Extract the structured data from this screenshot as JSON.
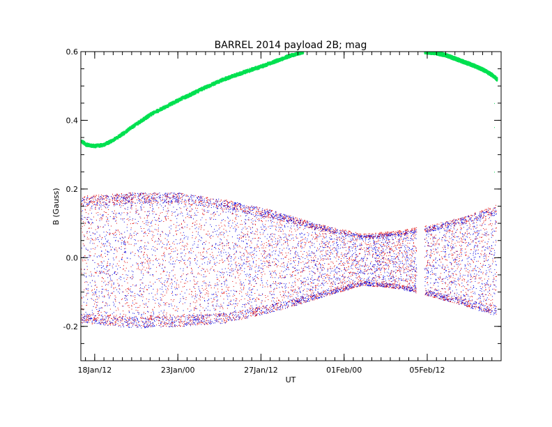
{
  "chart_data": {
    "type": "scatter",
    "title": "BARREL 2014 payload 2B; mag",
    "xlabel": "UT",
    "ylabel": "B (Gauss)",
    "xlim": [
      "2014-01-17T18:00",
      "2014-02-09T12:00"
    ],
    "ylim": [
      -0.3,
      0.6
    ],
    "x_ticks": [
      {
        "label": "18Jan/12",
        "value": "2014-01-18T12:00"
      },
      {
        "label": "23Jan/00",
        "value": "2014-01-23T00:00"
      },
      {
        "label": "27Jan/12",
        "value": "2014-01-27T12:00"
      },
      {
        "label": "01Feb/00",
        "value": "2014-02-01T00:00"
      },
      {
        "label": "05Feb/12",
        "value": "2014-02-05T12:00"
      }
    ],
    "y_ticks": [
      {
        "label": "0.6",
        "value": 0.6
      },
      {
        "label": "0.4",
        "value": 0.4
      },
      {
        "label": "0.2",
        "value": 0.2
      },
      {
        "label": "0.0",
        "value": 0.0
      },
      {
        "label": "-0.2",
        "value": -0.2
      }
    ],
    "grid": false,
    "legend": "none",
    "series": [
      {
        "color": "#00e050",
        "x": [
          "2014-01-17T18:00",
          "2014-01-18T00:00",
          "2014-01-18T12:00",
          "2014-01-19T00:00",
          "2014-01-19T12:00",
          "2014-01-20T00:00",
          "2014-01-20T12:00",
          "2014-01-21T00:00",
          "2014-01-21T12:00",
          "2014-01-22T00:00",
          "2014-01-22T12:00",
          "2014-01-23T00:00",
          "2014-01-23T12:00",
          "2014-01-24T00:00",
          "2014-01-24T12:00",
          "2014-01-25T00:00",
          "2014-01-25T12:00",
          "2014-01-26T00:00",
          "2014-01-26T12:00",
          "2014-01-27T00:00",
          "2014-01-27T12:00",
          "2014-01-28T00:00",
          "2014-01-28T12:00",
          "2014-01-29T00:00",
          "2014-01-29T12:00",
          "2014-01-29T18:00"
        ],
        "y": [
          0.34,
          0.33,
          0.326,
          0.33,
          0.345,
          0.362,
          0.382,
          0.4,
          0.418,
          0.432,
          0.446,
          0.46,
          0.472,
          0.485,
          0.498,
          0.51,
          0.521,
          0.531,
          0.54,
          0.549,
          0.558,
          0.568,
          0.578,
          0.588,
          0.596,
          0.6
        ]
      },
      {
        "color": "#00e050",
        "x": [
          "2014-02-05T08:00",
          "2014-02-06T00:00",
          "2014-02-06T12:00",
          "2014-02-07T00:00",
          "2014-02-07T12:00",
          "2014-02-08T00:00",
          "2014-02-08T12:00",
          "2014-02-09T00:00",
          "2014-02-09T06:00"
        ],
        "y": [
          0.6,
          0.596,
          0.59,
          0.58,
          0.57,
          0.56,
          0.548,
          0.532,
          0.52
        ]
      },
      {
        "color": "#e00000",
        "x": [
          "2014-01-17T18:00",
          "2014-01-20T12:00",
          "2014-01-23T00:00",
          "2014-01-25T12:00",
          "2014-01-28T00:00",
          "2014-01-30T12:00",
          "2014-02-02T00:00",
          "2014-02-04T00:00",
          "2014-02-05T12:00",
          "2014-02-07T12:00",
          "2014-02-09T06:00"
        ],
        "y_upper": [
          0.18,
          0.19,
          0.19,
          0.17,
          0.14,
          0.1,
          0.07,
          0.08,
          0.095,
          0.12,
          0.155
        ],
        "y_lower": [
          -0.19,
          -0.2,
          -0.2,
          -0.19,
          -0.16,
          -0.12,
          -0.08,
          -0.09,
          -0.11,
          -0.14,
          -0.165
        ]
      },
      {
        "color": "#0000e0",
        "x": [
          "2014-01-17T18:00",
          "2014-01-20T12:00",
          "2014-01-23T00:00",
          "2014-01-25T12:00",
          "2014-01-28T00:00",
          "2014-01-30T12:00",
          "2014-02-02T00:00",
          "2014-02-04T00:00",
          "2014-02-05T12:00",
          "2014-02-07T12:00",
          "2014-02-09T06:00"
        ],
        "y_upper": [
          0.175,
          0.19,
          0.19,
          0.17,
          0.14,
          0.1,
          0.065,
          0.075,
          0.09,
          0.12,
          0.15
        ],
        "y_lower": [
          -0.19,
          -0.205,
          -0.2,
          -0.19,
          -0.16,
          -0.12,
          -0.08,
          -0.09,
          -0.11,
          -0.14,
          -0.17
        ]
      }
    ]
  }
}
